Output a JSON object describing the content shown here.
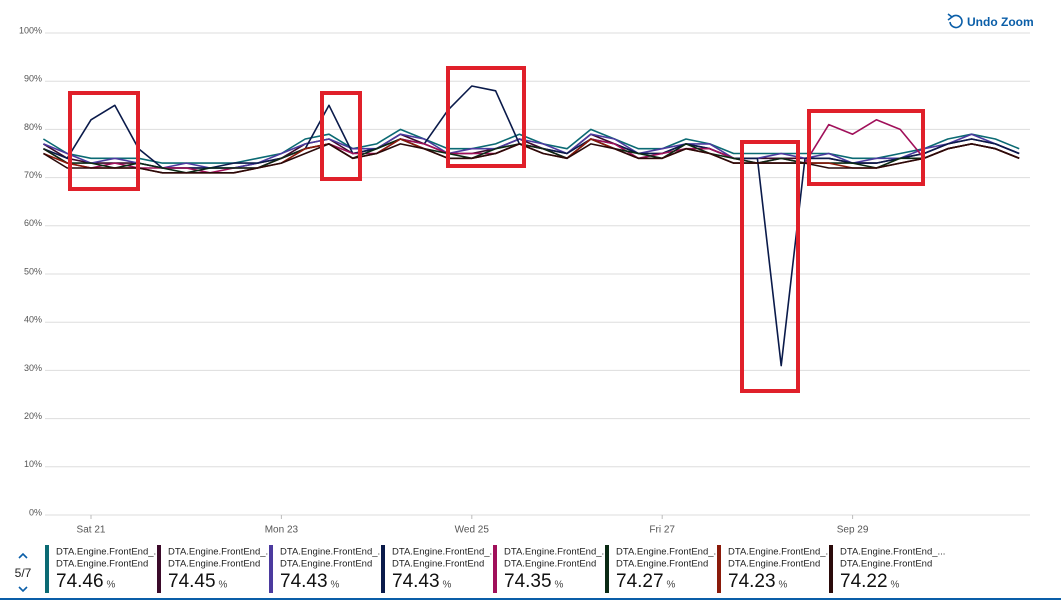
{
  "chart_data": {
    "type": "line",
    "undo_label": "Undo Zoom",
    "pager": "5/7",
    "unit": "%",
    "x": [
      null,
      null,
      "Sat 21",
      null,
      null,
      null,
      null,
      null,
      null,
      null,
      "Mon 23",
      null,
      null,
      null,
      null,
      null,
      null,
      null,
      "Wed 25",
      null,
      null,
      null,
      null,
      null,
      null,
      null,
      "Fri 27",
      null,
      null,
      null,
      null,
      null,
      null,
      null,
      "Sep 29",
      null,
      null,
      null,
      null,
      null,
      null,
      null
    ],
    "ylim": [
      0,
      100
    ],
    "yticks": [
      {
        "value": 0,
        "label": "0%"
      },
      {
        "value": 10,
        "label": "10%"
      },
      {
        "value": 20,
        "label": "20%"
      },
      {
        "value": 30,
        "label": "30%"
      },
      {
        "value": 40,
        "label": "40%"
      },
      {
        "value": 50,
        "label": "50%"
      },
      {
        "value": 60,
        "label": "60%"
      },
      {
        "value": 70,
        "label": "70%"
      },
      {
        "value": 80,
        "label": "80%"
      },
      {
        "value": 90,
        "label": "90%"
      },
      {
        "value": 100,
        "label": "100%"
      }
    ],
    "grid": true,
    "series": [
      {
        "name": "DTA.Engine.FrontEnd_...",
        "resource": "DTA.Engine.FrontEnd",
        "color": "#0b6a73",
        "legend_value": 74.46,
        "values": [
          78,
          75,
          74,
          74,
          74,
          73,
          73,
          73,
          73,
          74,
          75,
          78,
          79,
          76,
          77,
          80,
          78,
          76,
          76,
          77,
          79,
          77,
          76,
          80,
          78,
          76,
          76,
          78,
          77,
          75,
          75,
          75,
          75,
          75,
          74,
          74,
          75,
          76,
          78,
          79,
          78,
          76
        ]
      },
      {
        "name": "DTA.Engine.FrontEnd_...",
        "resource": "DTA.Engine.FrontEnd",
        "color": "#3b0a2a",
        "legend_value": 74.45,
        "values": [
          77,
          74,
          73,
          73,
          73,
          72,
          72,
          72,
          72,
          73,
          74,
          77,
          78,
          75,
          76,
          79,
          77,
          75,
          75,
          76,
          78,
          76,
          75,
          79,
          77,
          75,
          75,
          77,
          76,
          74,
          74,
          74,
          74,
          74,
          73,
          73,
          74,
          75,
          77,
          78,
          77,
          75
        ]
      },
      {
        "name": "DTA.Engine.FrontEnd_...",
        "resource": "DTA.Engine.FrontEnd",
        "color": "#4b3a9e",
        "legend_value": 74.43,
        "values": [
          77,
          75,
          73,
          74,
          73,
          72,
          73,
          72,
          72,
          73,
          75,
          77,
          78,
          76,
          76,
          79,
          78,
          75,
          76,
          76,
          78,
          77,
          75,
          79,
          78,
          75,
          76,
          77,
          77,
          74,
          74,
          75,
          74,
          75,
          73,
          74,
          74,
          76,
          77,
          79,
          77,
          75
        ]
      },
      {
        "name": "DTA.Engine.FrontEnd_...",
        "resource": "DTA.Engine.FrontEnd",
        "color": "#0a1a4a",
        "legend_value": 74.43,
        "values": [
          76,
          74,
          82,
          85,
          76,
          72,
          72,
          72,
          73,
          73,
          74,
          76,
          85,
          75,
          76,
          78,
          77,
          84,
          89,
          88,
          77,
          76,
          75,
          78,
          77,
          75,
          75,
          77,
          76,
          74,
          74,
          31,
          74,
          74,
          73,
          73,
          74,
          75,
          77,
          78,
          77,
          75
        ]
      },
      {
        "name": "DTA.Engine.FrontEnd_...",
        "resource": "DTA.Engine.FrontEnd",
        "color": "#a0105a",
        "legend_value": 74.35,
        "values": [
          76,
          73,
          72,
          73,
          72,
          72,
          72,
          71,
          72,
          72,
          74,
          76,
          77,
          75,
          75,
          78,
          77,
          75,
          75,
          75,
          77,
          76,
          74,
          78,
          77,
          74,
          75,
          76,
          76,
          74,
          73,
          74,
          73,
          81,
          79,
          82,
          80,
          74,
          76,
          77,
          76,
          74
        ]
      },
      {
        "name": "DTA.Engine.FrontEnd_...",
        "resource": "DTA.Engine.FrontEnd",
        "color": "#0a2a14",
        "legend_value": 74.27,
        "values": [
          76,
          73,
          73,
          72,
          73,
          72,
          71,
          72,
          72,
          72,
          74,
          76,
          77,
          74,
          76,
          78,
          76,
          75,
          74,
          76,
          77,
          76,
          74,
          78,
          76,
          75,
          74,
          77,
          75,
          74,
          73,
          74,
          73,
          73,
          73,
          72,
          74,
          74,
          76,
          77,
          76,
          74
        ]
      },
      {
        "name": "DTA.Engine.FrontEnd_...",
        "resource": "DTA.Engine.FrontEnd",
        "color": "#8a1a0a",
        "legend_value": 74.23,
        "values": [
          75,
          73,
          72,
          72,
          72,
          71,
          71,
          71,
          71,
          72,
          73,
          76,
          77,
          74,
          75,
          78,
          76,
          74,
          74,
          75,
          77,
          75,
          74,
          78,
          76,
          74,
          74,
          76,
          75,
          73,
          73,
          73,
          73,
          73,
          72,
          72,
          73,
          74,
          76,
          77,
          76,
          74
        ]
      },
      {
        "name": "DTA.Engine.FrontEnd_...",
        "resource": "DTA.Engine.FrontEnd",
        "color": "#2a0a0a",
        "legend_value": 74.22,
        "values": [
          75,
          72,
          72,
          72,
          72,
          71,
          71,
          71,
          71,
          72,
          73,
          75,
          77,
          74,
          75,
          77,
          76,
          74,
          74,
          75,
          77,
          75,
          74,
          77,
          76,
          74,
          74,
          76,
          75,
          73,
          73,
          73,
          73,
          72,
          72,
          72,
          73,
          74,
          76,
          77,
          76,
          74
        ]
      }
    ]
  }
}
